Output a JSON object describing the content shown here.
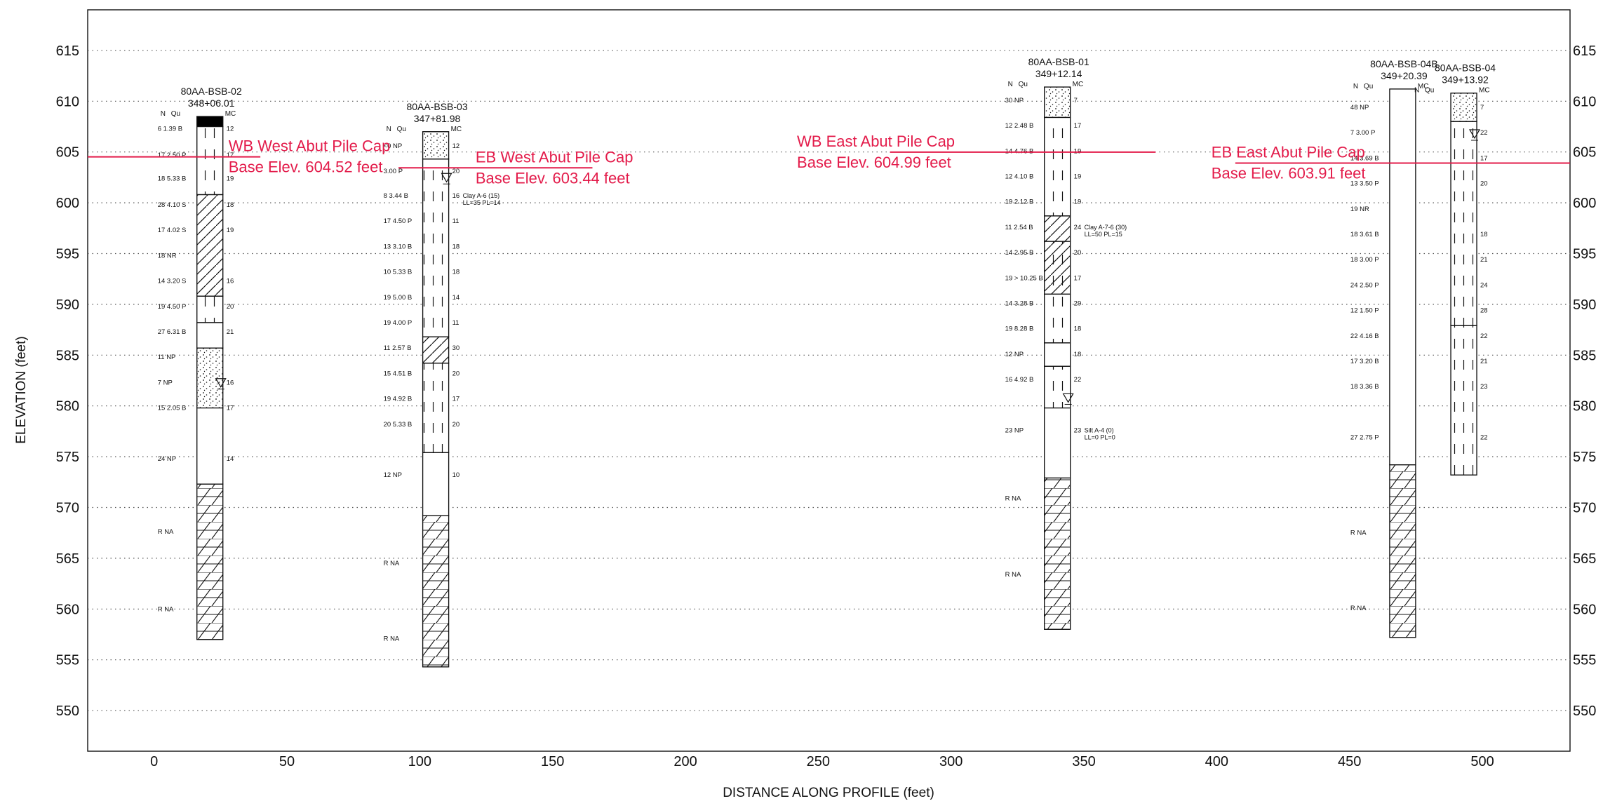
{
  "chart_data": {
    "type": "boring-log-profile",
    "xlabel": "DISTANCE ALONG PROFILE (feet)",
    "ylabel": "ELEVATION (feet)",
    "xlim": [
      -25,
      533
    ],
    "ylim": [
      546,
      619
    ],
    "xticks": [
      0,
      50,
      100,
      150,
      200,
      250,
      300,
      350,
      400,
      450,
      500
    ],
    "yticks": [
      550,
      555,
      560,
      565,
      570,
      575,
      580,
      585,
      590,
      595,
      600,
      605,
      610,
      615
    ],
    "grid": "horizontal-dotted",
    "borings": [
      {
        "id": "80AA-BSB-02",
        "station": "348+06.01",
        "x": 21,
        "top": 608.5,
        "bottom": 557,
        "water_level": 582,
        "layers": [
          {
            "top": 608.5,
            "bottom": 607.5,
            "pattern": "solid"
          },
          {
            "top": 607.5,
            "bottom": 600.8,
            "pattern": "dash"
          },
          {
            "top": 600.8,
            "bottom": 590.8,
            "pattern": "hatch"
          },
          {
            "top": 590.8,
            "bottom": 588.2,
            "pattern": "dash"
          },
          {
            "top": 588.2,
            "bottom": 585.7,
            "pattern": "blank"
          },
          {
            "top": 585.7,
            "bottom": 579.8,
            "pattern": "dots"
          },
          {
            "top": 579.8,
            "bottom": 572.3,
            "pattern": "blank"
          },
          {
            "top": 572.3,
            "bottom": 557,
            "pattern": "rock"
          }
        ],
        "samples": [
          {
            "elev": 607.3,
            "left": "6  1.39 B",
            "mc": "12"
          },
          {
            "elev": 604.7,
            "left": "17  2.50 P",
            "mc": "17"
          },
          {
            "elev": 602.4,
            "left": "18  5.33 B",
            "mc": "19"
          },
          {
            "elev": 599.8,
            "left": "28  4.10 S",
            "mc": "18"
          },
          {
            "elev": 597.3,
            "left": "17  4.02 S",
            "mc": "19"
          },
          {
            "elev": 594.8,
            "left": "18  NR",
            "mc": ""
          },
          {
            "elev": 592.3,
            "left": "14  3.20 S",
            "mc": "16"
          },
          {
            "elev": 589.8,
            "left": "19  4.50 P",
            "mc": "20"
          },
          {
            "elev": 587.3,
            "left": "27  6.31 B",
            "mc": "21"
          },
          {
            "elev": 584.8,
            "left": "11  NP",
            "mc": ""
          },
          {
            "elev": 582.3,
            "left": "7  NP",
            "mc": "16"
          },
          {
            "elev": 579.8,
            "left": "15  2.05 B",
            "mc": "17"
          },
          {
            "elev": 574.8,
            "left": "24  NP",
            "mc": "14"
          },
          {
            "elev": 567.6,
            "left": "R  NA",
            "mc": ""
          },
          {
            "elev": 560,
            "left": "R  NA",
            "mc": ""
          }
        ],
        "notes": []
      },
      {
        "id": "80AA-BSB-03",
        "station": "347+81.98",
        "x": 106,
        "top": 607,
        "bottom": 554.3,
        "water_level": 602.2,
        "layers": [
          {
            "top": 607,
            "bottom": 604.3,
            "pattern": "dots"
          },
          {
            "top": 604.3,
            "bottom": 586.8,
            "pattern": "dash"
          },
          {
            "top": 586.8,
            "bottom": 584.2,
            "pattern": "hatch"
          },
          {
            "top": 584.2,
            "bottom": 575.4,
            "pattern": "dash"
          },
          {
            "top": 575.4,
            "bottom": 569.2,
            "pattern": "blank"
          },
          {
            "top": 569.2,
            "bottom": 554.3,
            "pattern": "rock"
          }
        ],
        "samples": [
          {
            "elev": 605.6,
            "left": "<0  NP",
            "mc": "12"
          },
          {
            "elev": 603.1,
            "left": "3.00 P",
            "mc": "20"
          },
          {
            "elev": 600.7,
            "left": "8  3.44 B",
            "mc": "16"
          },
          {
            "elev": 598.2,
            "left": "17  4.50 P",
            "mc": "11"
          },
          {
            "elev": 595.7,
            "left": "13  3.10 B",
            "mc": "18"
          },
          {
            "elev": 593.2,
            "left": "10  5.33 B",
            "mc": "18"
          },
          {
            "elev": 590.7,
            "left": "19  5.00 B",
            "mc": "14"
          },
          {
            "elev": 588.2,
            "left": "19  4.00 P",
            "mc": "11"
          },
          {
            "elev": 585.7,
            "left": "11  2.57 B",
            "mc": "30"
          },
          {
            "elev": 583.2,
            "left": "15  4.51 B",
            "mc": "20"
          },
          {
            "elev": 580.7,
            "left": "19  4.92 B",
            "mc": "17"
          },
          {
            "elev": 578.2,
            "left": "20  5.33 B",
            "mc": "20"
          },
          {
            "elev": 573.2,
            "left": "12  NP",
            "mc": "10"
          },
          {
            "elev": 564.5,
            "left": "R  NA",
            "mc": ""
          },
          {
            "elev": 557.1,
            "left": "R  NA",
            "mc": ""
          }
        ],
        "notes": [
          {
            "elev": 600.7,
            "lines": [
              "Clay A-6 (15)",
              "LL=35 PL=14"
            ]
          }
        ]
      },
      {
        "id": "80AA-BSB-01",
        "station": "349+12.14",
        "x": 340,
        "top": 611.4,
        "bottom": 558,
        "water_level": 580.5,
        "layers": [
          {
            "top": 611.4,
            "bottom": 608.4,
            "pattern": "dots"
          },
          {
            "top": 608.4,
            "bottom": 598.7,
            "pattern": "dash"
          },
          {
            "top": 598.7,
            "bottom": 596.2,
            "pattern": "hatch"
          },
          {
            "top": 596.2,
            "bottom": 591.0,
            "pattern": "dash-hatch"
          },
          {
            "top": 591.0,
            "bottom": 586.2,
            "pattern": "dash"
          },
          {
            "top": 586.2,
            "bottom": 583.9,
            "pattern": "blank"
          },
          {
            "top": 583.9,
            "bottom": 579.8,
            "pattern": "dash"
          },
          {
            "top": 579.8,
            "bottom": 572.9,
            "pattern": "blank"
          },
          {
            "top": 572.9,
            "bottom": 558,
            "pattern": "rock"
          }
        ],
        "samples": [
          {
            "elev": 610.1,
            "left": "30  NP",
            "mc": "7"
          },
          {
            "elev": 607.6,
            "left": "12  2.48 B",
            "mc": "17"
          },
          {
            "elev": 605.1,
            "left": "14  4.76 B",
            "mc": "19"
          },
          {
            "elev": 602.6,
            "left": "12  4.10 B",
            "mc": "19"
          },
          {
            "elev": 600.1,
            "left": "19  2.12 B",
            "mc": "19"
          },
          {
            "elev": 597.6,
            "left": "11  2.54 B",
            "mc": "24"
          },
          {
            "elev": 595.1,
            "left": "14  2.95 B",
            "mc": "20"
          },
          {
            "elev": 592.6,
            "left": "19  > 10.25 B",
            "mc": "17"
          },
          {
            "elev": 590.1,
            "left": "14  3.28 B",
            "mc": "29"
          },
          {
            "elev": 587.6,
            "left": "19  8.28 B",
            "mc": "18"
          },
          {
            "elev": 585.1,
            "left": "12  NP",
            "mc": "18"
          },
          {
            "elev": 582.6,
            "left": "16  4.92 B",
            "mc": "22"
          },
          {
            "elev": 577.6,
            "left": "23  NP",
            "mc": "23"
          },
          {
            "elev": 570.9,
            "left": "R  NA",
            "mc": ""
          },
          {
            "elev": 563.4,
            "left": "R  NA",
            "mc": ""
          }
        ],
        "notes": [
          {
            "elev": 597.6,
            "lines": [
              "Clay A-7-6 (30)",
              "LL=50 PL=15"
            ]
          },
          {
            "elev": 577.6,
            "lines": [
              "Silt A-4 (0)",
              "LL=0 PL=0"
            ]
          }
        ]
      },
      {
        "id": "80AA-BSB-04B",
        "station": "349+20.39",
        "x": 470,
        "top": 611.2,
        "bottom": 557.2,
        "water_level": null,
        "layers": [
          {
            "top": 611.2,
            "bottom": 574.2,
            "pattern": "blank"
          },
          {
            "top": 574.2,
            "bottom": 557.2,
            "pattern": "rock"
          }
        ],
        "samples": [
          {
            "elev": 609.4,
            "left": "48  NP",
            "mc": ""
          },
          {
            "elev": 606.9,
            "left": "7  3.00 P",
            "mc": ""
          },
          {
            "elev": 604.4,
            "left": "14  3.69 B",
            "mc": ""
          },
          {
            "elev": 601.9,
            "left": "13  3.50 P",
            "mc": ""
          },
          {
            "elev": 599.4,
            "left": "19  NR",
            "mc": ""
          },
          {
            "elev": 596.9,
            "left": "18  3.61 B",
            "mc": ""
          },
          {
            "elev": 594.4,
            "left": "18  3.00 P",
            "mc": ""
          },
          {
            "elev": 591.9,
            "left": "24  2.50 P",
            "mc": ""
          },
          {
            "elev": 589.4,
            "left": "12  1.50 P",
            "mc": ""
          },
          {
            "elev": 586.9,
            "left": "22  4.16 B",
            "mc": ""
          },
          {
            "elev": 584.4,
            "left": "17  3.20 B",
            "mc": ""
          },
          {
            "elev": 581.9,
            "left": "18  3.36 B",
            "mc": ""
          },
          {
            "elev": 576.9,
            "left": "27  2.75 P",
            "mc": ""
          },
          {
            "elev": 567.5,
            "left": "R  NA",
            "mc": ""
          },
          {
            "elev": 560.1,
            "left": "R  NA",
            "mc": ""
          }
        ],
        "notes": []
      },
      {
        "id": "80AA-BSB-04",
        "station": "349+13.92",
        "x": 493,
        "top": 610.8,
        "bottom": 573.2,
        "water_level": 606.5,
        "layers": [
          {
            "top": 610.8,
            "bottom": 608.0,
            "pattern": "dots"
          },
          {
            "top": 608.0,
            "bottom": 587.9,
            "pattern": "dash"
          },
          {
            "top": 587.9,
            "bottom": 573.2,
            "pattern": "dash"
          }
        ],
        "samples": [
          {
            "elev": 609.4,
            "left": "",
            "mc": "7"
          },
          {
            "elev": 606.9,
            "left": "",
            "mc": "22"
          },
          {
            "elev": 604.4,
            "left": "",
            "mc": "17"
          },
          {
            "elev": 601.9,
            "left": "",
            "mc": "20"
          },
          {
            "elev": 596.9,
            "left": "",
            "mc": "18"
          },
          {
            "elev": 594.4,
            "left": "",
            "mc": "21"
          },
          {
            "elev": 591.9,
            "left": "",
            "mc": "24"
          },
          {
            "elev": 589.4,
            "left": "",
            "mc": "28"
          },
          {
            "elev": 586.9,
            "left": "",
            "mc": "22"
          },
          {
            "elev": 584.4,
            "left": "",
            "mc": "21"
          },
          {
            "elev": 581.9,
            "left": "",
            "mc": "23"
          },
          {
            "elev": 576.9,
            "left": "",
            "mc": "22"
          }
        ],
        "notes": []
      }
    ],
    "pile_caps": [
      {
        "label1": "WB West Abut Pile Cap",
        "label2": "Base Elev. 604.52 feet",
        "elev": 604.52,
        "x_from": -25,
        "x_to": 40,
        "label_x": 28
      },
      {
        "label1": "EB West Abut Pile Cap",
        "label2": "Base Elev. 603.44 feet",
        "elev": 603.44,
        "x_from": 92,
        "x_to": 165,
        "label_x": 121
      },
      {
        "label1": "WB East Abut Pile Cap",
        "label2": "Base Elev. 604.99 feet",
        "elev": 604.99,
        "x_from": 277,
        "x_to": 377,
        "label_x": 242
      },
      {
        "label1": "EB East Abut Pile Cap",
        "label2": "Base Elev. 603.91 feet",
        "elev": 603.91,
        "x_from": 407,
        "x_to": 533,
        "label_x": 398
      }
    ]
  },
  "colors": {
    "pile_cap": "#e31b4a",
    "grid": "#555555",
    "frame": "#111111"
  },
  "header": {
    "n": "N",
    "qu": "Qu",
    "mc": "MC"
  }
}
